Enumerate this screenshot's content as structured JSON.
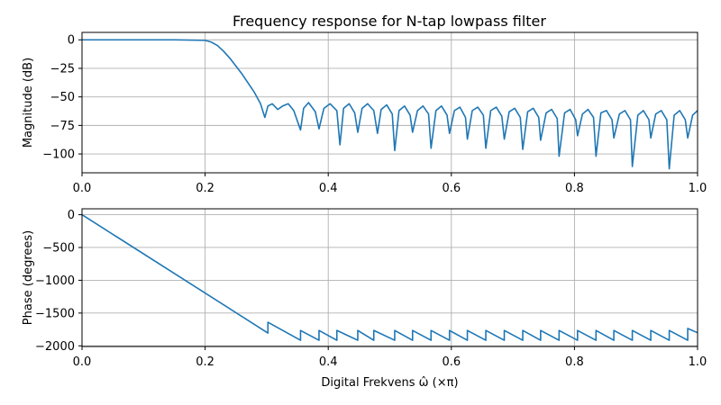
{
  "figure": {
    "title": "Frequency response for N-tap lowpass filter",
    "line_color": "#1f77b4"
  },
  "chart_data": [
    {
      "type": "line",
      "title": "Frequency response for N-tap lowpass filter",
      "xlabel": "",
      "ylabel": "Magnitude (dB)",
      "xlim": [
        0.0,
        1.0
      ],
      "ylim": [
        -116.5,
        6.5
      ],
      "grid": true,
      "xticks": [
        0.0,
        0.2,
        0.4,
        0.6,
        0.8,
        1.0
      ],
      "xtick_labels": [
        "0.0",
        "0.2",
        "0.4",
        "0.6",
        "0.8",
        "1.0"
      ],
      "yticks": [
        0,
        -25,
        -50,
        -75,
        -100
      ],
      "ytick_labels": [
        "0",
        "−25",
        "−50",
        "−75",
        "−100"
      ],
      "series": [
        {
          "x": [
            0.0,
            0.05,
            0.1,
            0.15,
            0.2,
            0.21,
            0.22,
            0.23,
            0.24,
            0.25,
            0.26,
            0.27,
            0.28,
            0.29,
            0.297,
            0.302,
            0.309,
            0.318,
            0.326,
            0.335,
            0.344,
            0.355,
            0.36,
            0.368,
            0.379,
            0.385,
            0.393,
            0.403,
            0.414,
            0.419,
            0.425,
            0.434,
            0.443,
            0.448,
            0.455,
            0.464,
            0.474,
            0.48,
            0.486,
            0.495,
            0.504,
            0.508,
            0.515,
            0.524,
            0.533,
            0.537,
            0.545,
            0.554,
            0.563,
            0.567,
            0.575,
            0.584,
            0.593,
            0.597,
            0.605,
            0.614,
            0.623,
            0.626,
            0.634,
            0.643,
            0.652,
            0.656,
            0.664,
            0.673,
            0.682,
            0.686,
            0.694,
            0.703,
            0.712,
            0.716,
            0.724,
            0.733,
            0.742,
            0.745,
            0.754,
            0.763,
            0.772,
            0.775,
            0.784,
            0.793,
            0.802,
            0.805,
            0.813,
            0.822,
            0.831,
            0.835,
            0.843,
            0.852,
            0.861,
            0.864,
            0.873,
            0.882,
            0.891,
            0.894,
            0.903,
            0.912,
            0.921,
            0.924,
            0.932,
            0.941,
            0.95,
            0.954,
            0.962,
            0.971,
            0.98,
            0.984,
            0.992,
            1.0
          ],
          "y": [
            0,
            0,
            0,
            0,
            -0.5,
            -2,
            -5,
            -10,
            -16,
            -23,
            -30,
            -38,
            -46,
            -56,
            -68,
            -58,
            -56,
            -61,
            -58,
            -56,
            -62,
            -79,
            -60,
            -55,
            -63,
            -78,
            -60,
            -56,
            -62,
            -92,
            -60,
            -56,
            -64,
            -81,
            -60,
            -56,
            -62,
            -82,
            -61,
            -57,
            -65,
            -97,
            -62,
            -58,
            -66,
            -81,
            -62,
            -58,
            -65,
            -95,
            -62,
            -58,
            -66,
            -82,
            -62,
            -59,
            -68,
            -87,
            -62,
            -59,
            -66,
            -95,
            -62,
            -59,
            -67,
            -87,
            -63,
            -60,
            -68,
            -96,
            -63,
            -60,
            -68,
            -88,
            -64,
            -61,
            -69,
            -102,
            -64,
            -61,
            -70,
            -84,
            -65,
            -61,
            -68,
            -102,
            -64,
            -62,
            -70,
            -86,
            -65,
            -62,
            -70,
            -111,
            -66,
            -62,
            -70,
            -86,
            -65,
            -62,
            -70,
            -113,
            -66,
            -62,
            -70,
            -86,
            -66,
            -62
          ]
        }
      ]
    },
    {
      "type": "line",
      "title": "",
      "xlabel": "Digital Frekvens ω̂ (×π)",
      "ylabel": "Phase (degrees)",
      "xlim": [
        0.0,
        1.0
      ],
      "ylim": [
        -2010,
        90
      ],
      "grid": true,
      "xticks": [
        0.0,
        0.2,
        0.4,
        0.6,
        0.8,
        1.0
      ],
      "xtick_labels": [
        "0.0",
        "0.2",
        "0.4",
        "0.6",
        "0.8",
        "1.0"
      ],
      "yticks": [
        0,
        -500,
        -1000,
        -1500,
        -2000
      ],
      "ytick_labels": [
        "0",
        "−500",
        "−1000",
        "−1500",
        "−2000"
      ],
      "series": [
        {
          "x": [
            0.0,
            0.302,
            0.302,
            0.355,
            0.355,
            0.385,
            0.385,
            0.414,
            0.414,
            0.448,
            0.448,
            0.474,
            0.474,
            0.508,
            0.508,
            0.537,
            0.537,
            0.567,
            0.567,
            0.597,
            0.597,
            0.626,
            0.626,
            0.656,
            0.656,
            0.686,
            0.686,
            0.716,
            0.716,
            0.745,
            0.745,
            0.775,
            0.775,
            0.805,
            0.805,
            0.835,
            0.835,
            0.864,
            0.864,
            0.894,
            0.894,
            0.924,
            0.924,
            0.954,
            0.954,
            0.984,
            0.984,
            1.0
          ],
          "y": [
            0,
            -1805,
            -1640,
            -1915,
            -1765,
            -1915,
            -1765,
            -1915,
            -1765,
            -1915,
            -1765,
            -1915,
            -1765,
            -1915,
            -1765,
            -1915,
            -1765,
            -1915,
            -1765,
            -1915,
            -1765,
            -1915,
            -1765,
            -1915,
            -1765,
            -1915,
            -1765,
            -1915,
            -1765,
            -1915,
            -1765,
            -1915,
            -1765,
            -1915,
            -1765,
            -1915,
            -1765,
            -1915,
            -1765,
            -1915,
            -1765,
            -1915,
            -1765,
            -1915,
            -1765,
            -1915,
            -1735,
            -1800
          ]
        }
      ]
    }
  ]
}
